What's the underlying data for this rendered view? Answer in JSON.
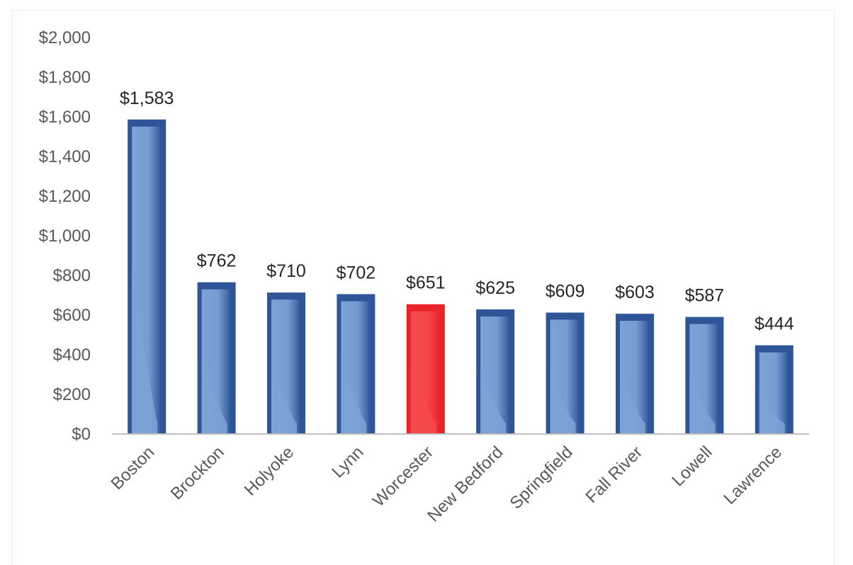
{
  "chart_data": {
    "type": "bar",
    "categories": [
      "Boston",
      "Brockton",
      "Holyoke",
      "Lynn",
      "Worcester",
      "New Bedford",
      "Springfield",
      "Fall River",
      "Lowell",
      "Lawrence"
    ],
    "values": [
      1583,
      762,
      710,
      702,
      651,
      625,
      609,
      603,
      587,
      444
    ],
    "data_labels": [
      "$1,583",
      "$762",
      "$710",
      "$702",
      "$651",
      "$625",
      "$609",
      "$603",
      "$587",
      "$444"
    ],
    "highlight_category": "Worcester",
    "ylim": [
      0,
      2000
    ],
    "yticks": [
      0,
      200,
      400,
      600,
      800,
      1000,
      1200,
      1400,
      1600,
      1800,
      2000
    ],
    "ytick_labels": [
      "$0",
      "$200",
      "$400",
      "$600",
      "$800",
      "$1,000",
      "$1,200",
      "$1,400",
      "$1,600",
      "$1,800",
      "$2,000"
    ],
    "grid": false,
    "legend": "none",
    "title": "",
    "xlabel": "",
    "ylabel": "",
    "colors": {
      "bar": "#2e5597",
      "bar_light": "#7ba3d6",
      "highlight": "#e8242a",
      "highlight_light": "#f44a4e",
      "axis": "#bfbfbf"
    }
  }
}
